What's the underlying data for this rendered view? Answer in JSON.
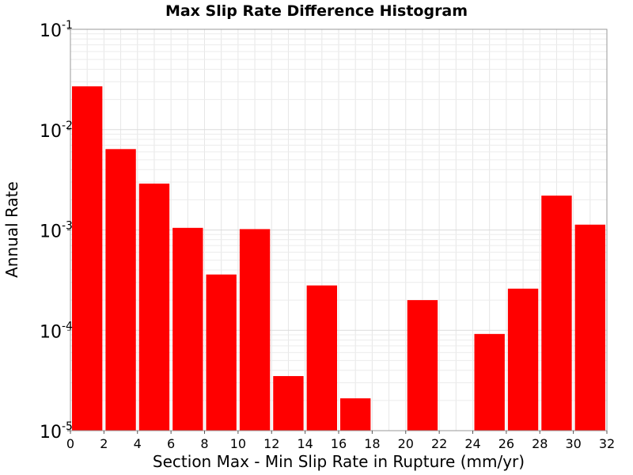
{
  "chart_data": {
    "type": "bar",
    "title": "Max Slip Rate Difference Histogram",
    "xlabel": "Section Max - Min Slip Rate in Rupture (mm/yr)",
    "ylabel": "Annual Rate",
    "y_scale": "log",
    "xlim": [
      0,
      32
    ],
    "ylim": [
      1e-05,
      0.1
    ],
    "grid": true,
    "bar_color": "#ff0000",
    "bin_width": 2,
    "x_ticks": [
      "0",
      "2",
      "4",
      "6",
      "8",
      "10",
      "12",
      "14",
      "16",
      "18",
      "20",
      "22",
      "24",
      "26",
      "28",
      "30",
      "32"
    ],
    "y_ticks": [
      {
        "base": "10",
        "exp": "-5"
      },
      {
        "base": "10",
        "exp": "-4"
      },
      {
        "base": "10",
        "exp": "-3"
      },
      {
        "base": "10",
        "exp": "-2"
      },
      {
        "base": "10",
        "exp": "-1"
      }
    ],
    "bins": [
      {
        "x": 1,
        "value": 0.027
      },
      {
        "x": 3,
        "value": 0.0064
      },
      {
        "x": 5,
        "value": 0.0029
      },
      {
        "x": 7,
        "value": 0.00105
      },
      {
        "x": 9,
        "value": 0.00036
      },
      {
        "x": 11,
        "value": 0.00102
      },
      {
        "x": 13,
        "value": 3.5e-05
      },
      {
        "x": 15,
        "value": 0.00028
      },
      {
        "x": 17,
        "value": 2.1e-05
      },
      {
        "x": 19,
        "value": null
      },
      {
        "x": 21,
        "value": 0.0002
      },
      {
        "x": 23,
        "value": null
      },
      {
        "x": 25,
        "value": 9.2e-05
      },
      {
        "x": 27,
        "value": 0.00026
      },
      {
        "x": 29,
        "value": 0.0022
      },
      {
        "x": 31,
        "value": 0.00113
      }
    ]
  }
}
